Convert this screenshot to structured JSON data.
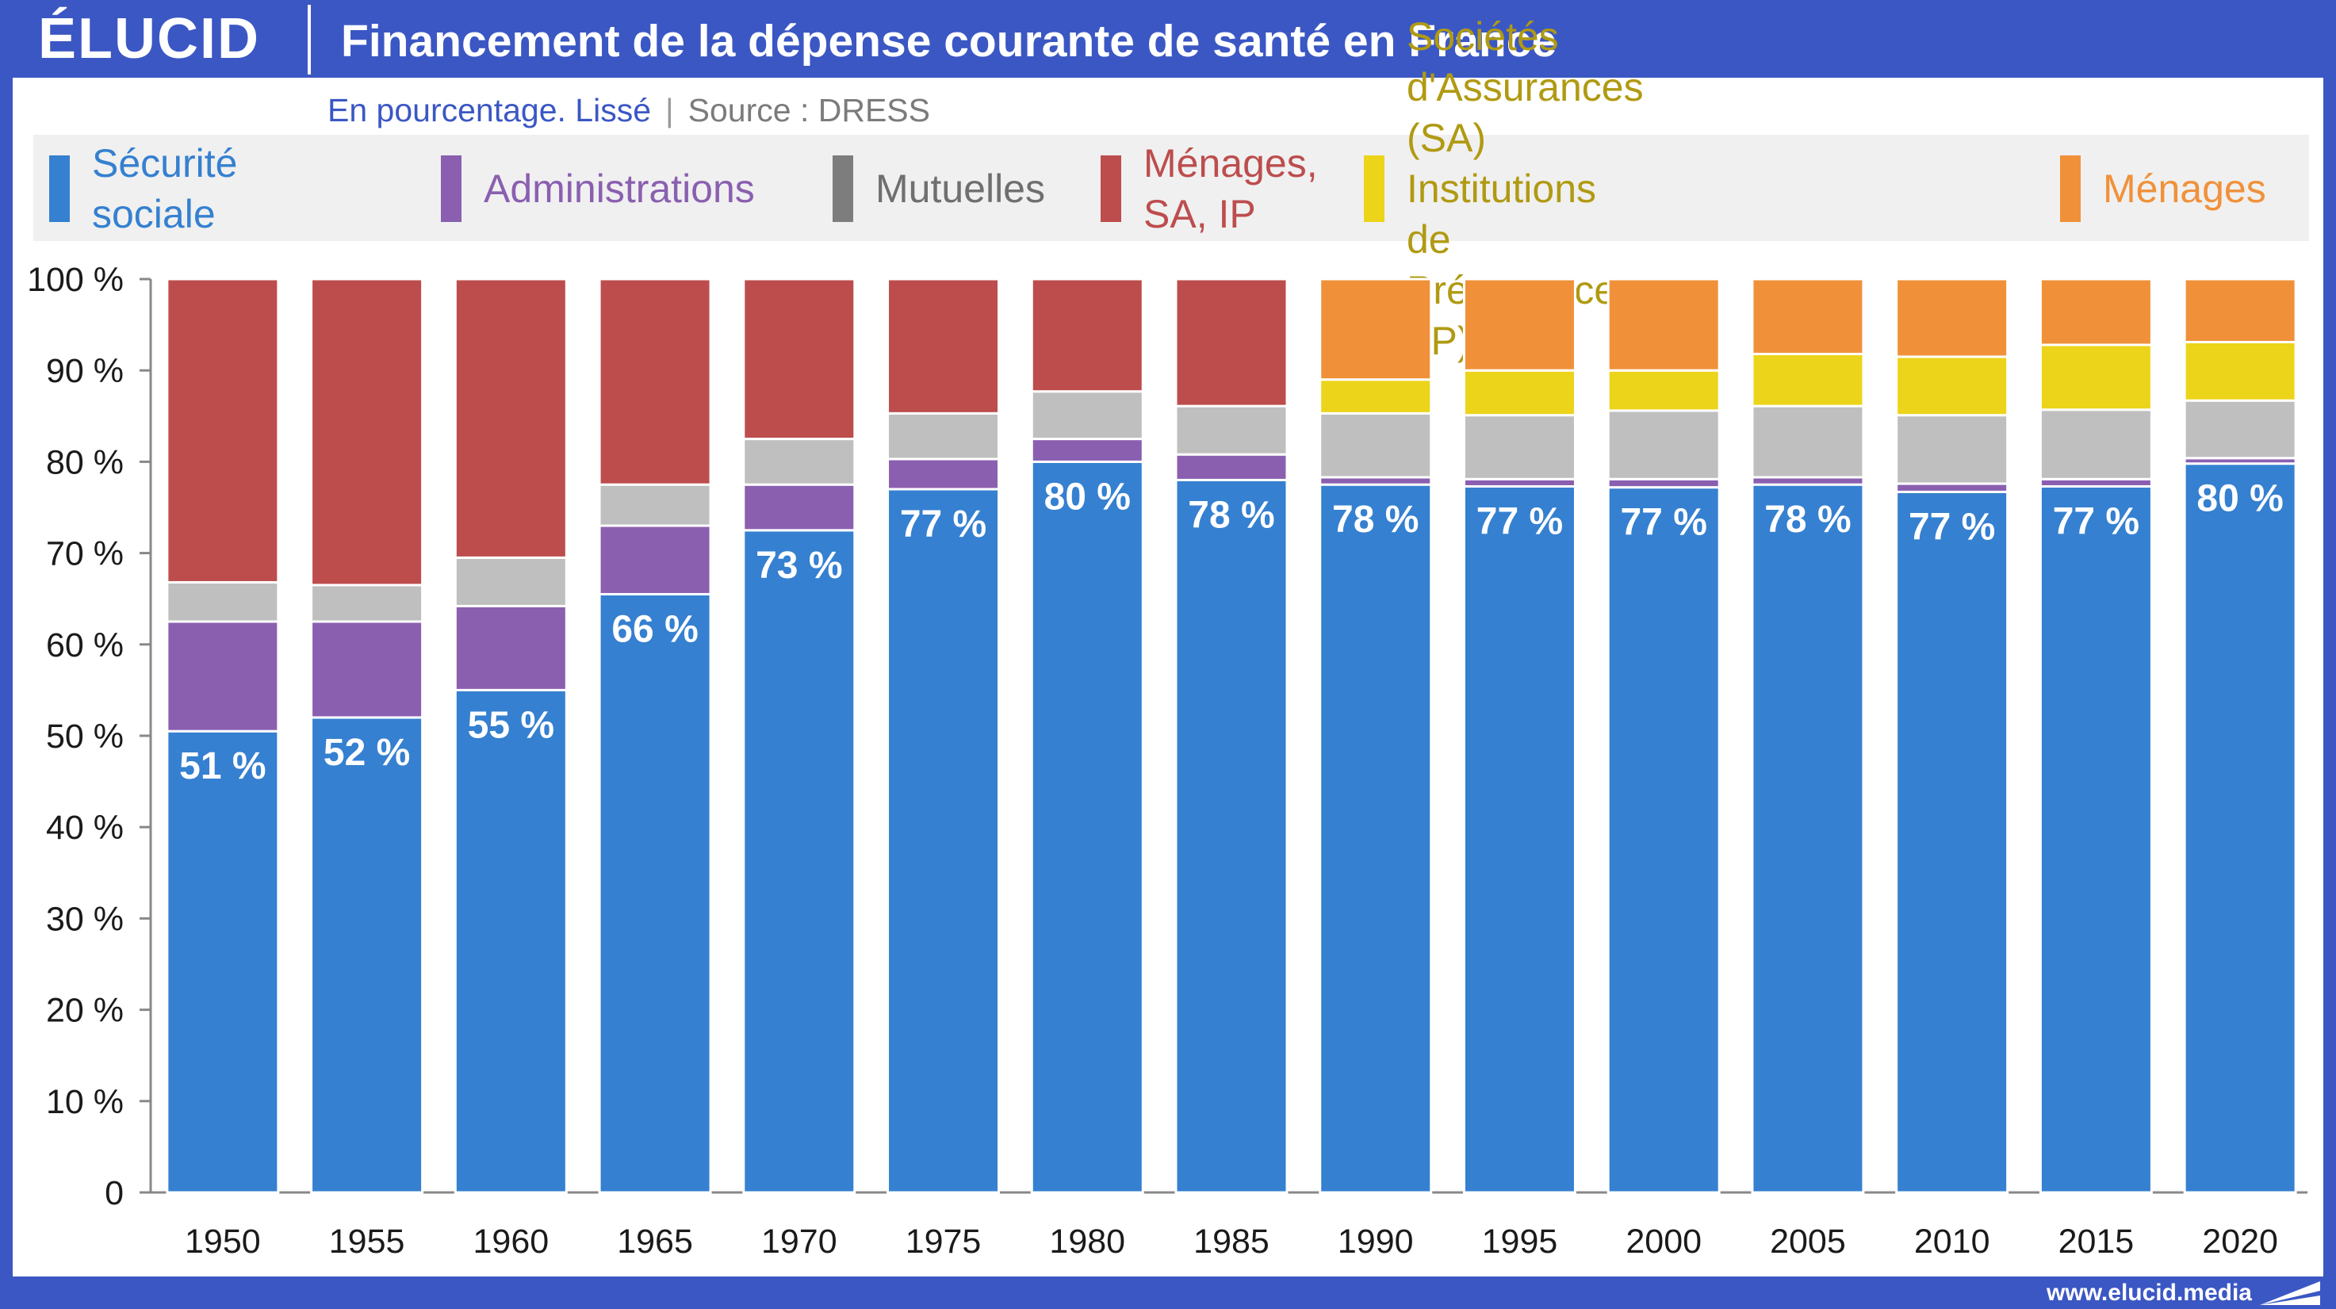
{
  "header": {
    "logo": "ÉLUCID",
    "title": "Financement de la dépense courante de santé en France"
  },
  "subtitle": {
    "main": "En pourcentage. Lissé",
    "separator": "|",
    "source": "Source : DRESS"
  },
  "footer": {
    "url": "www.elucid.media"
  },
  "colors": {
    "brand_blue": "#3b57c4",
    "secu": "#3580d0",
    "admin": "#8a5fb0",
    "mutuelles": "#bfbfbf",
    "menages_sa_ip": "#bd4d4d",
    "sa_ip": "#ecd41a",
    "menages": "#f0913a"
  },
  "legend": [
    {
      "label": "Sécurité sociale",
      "color": "#3580d0",
      "text_color": "#3580d0"
    },
    {
      "label": "Administrations",
      "color": "#8a5fb0",
      "text_color": "#8a5fb0"
    },
    {
      "label": "Mutuelles",
      "color": "#7d7d7d",
      "text_color": "#6f6f6f"
    },
    {
      "label": "Ménages,\nSA, IP",
      "color": "#bd4d4d",
      "text_color": "#bd4d4d"
    },
    {
      "label": "Sociétés d'Assurances (SA)\nInstitutions de Prévoyance (IP)",
      "color": "#ecd41a",
      "text_color": "#b09a12"
    },
    {
      "label": "Ménages",
      "color": "#f0913a",
      "text_color": "#f0913a"
    }
  ],
  "chart_data": {
    "type": "bar",
    "stacked": true,
    "categories": [
      "1950",
      "1955",
      "1960",
      "1965",
      "1970",
      "1975",
      "1980",
      "1985",
      "1990",
      "1995",
      "2000",
      "2005",
      "2010",
      "2015",
      "2020"
    ],
    "ylim": [
      0,
      100
    ],
    "yticks": [
      0,
      10,
      20,
      30,
      40,
      50,
      60,
      70,
      80,
      90,
      100
    ],
    "ytick_labels": [
      "0",
      "10 %",
      "20 %",
      "30 %",
      "40 %",
      "50 %",
      "60 %",
      "70 %",
      "80 %",
      "90 %",
      "100 %"
    ],
    "grid": false,
    "legend_position": "top",
    "series": [
      {
        "name": "Sécurité sociale",
        "color": "#3580d0",
        "values": [
          50.5,
          52,
          55,
          65.5,
          72.5,
          77,
          80,
          78,
          77.5,
          77.3,
          77.2,
          77.5,
          76.7,
          77.3,
          79.8
        ],
        "labels": [
          "51 %",
          "52 %",
          "55 %",
          "66 %",
          "73 %",
          "77 %",
          "80 %",
          "78 %",
          "78 %",
          "77 %",
          "77 %",
          "78 %",
          "77 %",
          "77 %",
          "80 %"
        ]
      },
      {
        "name": "Administrations",
        "color": "#8a5fb0",
        "values": [
          12,
          10.5,
          9.2,
          7.5,
          5,
          3.3,
          2.5,
          2.8,
          0.8,
          0.8,
          0.9,
          0.8,
          0.9,
          0.8,
          0.6
        ]
      },
      {
        "name": "Mutuelles",
        "color": "#bfbfbf",
        "values": [
          4.3,
          4,
          5.3,
          4.5,
          5,
          5,
          5.2,
          5.3,
          7,
          7,
          7.5,
          7.8,
          7.5,
          7.6,
          6.3
        ]
      },
      {
        "name": "Ménages, SA, IP",
        "color": "#bd4d4d",
        "values": [
          33.2,
          33.5,
          30.5,
          22.5,
          17.5,
          14.7,
          12.3,
          13.9,
          0,
          0,
          0,
          0,
          0,
          0,
          0
        ]
      },
      {
        "name": "Sociétés d'Assurances (SA) Institutions de Prévoyance (IP)",
        "color": "#ecd41a",
        "values": [
          0,
          0,
          0,
          0,
          0,
          0,
          0,
          0,
          3.7,
          4.9,
          4.4,
          5.7,
          6.4,
          7.1,
          6.4
        ]
      },
      {
        "name": "Ménages",
        "color": "#f0913a",
        "values": [
          0,
          0,
          0,
          0,
          0,
          0,
          0,
          0,
          11,
          10,
          10,
          8.2,
          8.5,
          7.2,
          6.9
        ]
      }
    ]
  }
}
